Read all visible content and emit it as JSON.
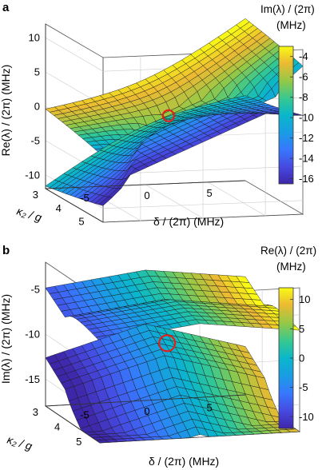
{
  "chart_data": [
    {
      "type": "surface",
      "panel_label": "a",
      "xlabel": "δ / (2π)  (MHz)",
      "ylabel": "κ₂ / g",
      "zlabel": "Re(λ) / (2π)  (MHz)",
      "colorbar_title": "Im(λ) / (2π)",
      "colorbar_units": "(MHz)",
      "x_ticks": [
        "-5",
        "0",
        "5"
      ],
      "y_ticks": [
        "3",
        "4",
        "5"
      ],
      "z_ticks": [
        "10",
        "5",
        "0",
        "-5",
        "-10"
      ],
      "colorbar_ticks": [
        "-4",
        "-6",
        "-8",
        "-10",
        "-12",
        "-14",
        "-16"
      ],
      "xlim": [
        -8,
        8
      ],
      "ylim": [
        3,
        5.5
      ],
      "zlim": [
        -12,
        12
      ],
      "clim": [
        -16.5,
        -3
      ],
      "colormap": "parula",
      "exceptional_point": {
        "x": 0,
        "y": 4,
        "z": 0,
        "marker": "red circle"
      },
      "grid": true
    },
    {
      "type": "surface",
      "panel_label": "b",
      "xlabel": "δ / (2π)  (MHz)",
      "ylabel": "κ₂ / g",
      "zlabel": "Im(λ) / (2π)  (MHz)",
      "colorbar_title": "Re(λ) / (2π)",
      "colorbar_units": "(MHz)",
      "x_ticks": [
        "-5",
        "0",
        "5"
      ],
      "y_ticks": [
        "3",
        "4",
        "5"
      ],
      "z_ticks": [
        "-5",
        "-10",
        "-15"
      ],
      "colorbar_ticks": [
        "10",
        "5",
        "0",
        "-5",
        "-10"
      ],
      "xlim": [
        -8,
        8
      ],
      "ylim": [
        3,
        5.5
      ],
      "zlim": [
        -18,
        -2
      ],
      "clim": [
        -12,
        12
      ],
      "colormap": "parula",
      "exceptional_point": {
        "x": 0,
        "y": 4,
        "z": -10,
        "marker": "red circle"
      },
      "grid": true
    }
  ]
}
